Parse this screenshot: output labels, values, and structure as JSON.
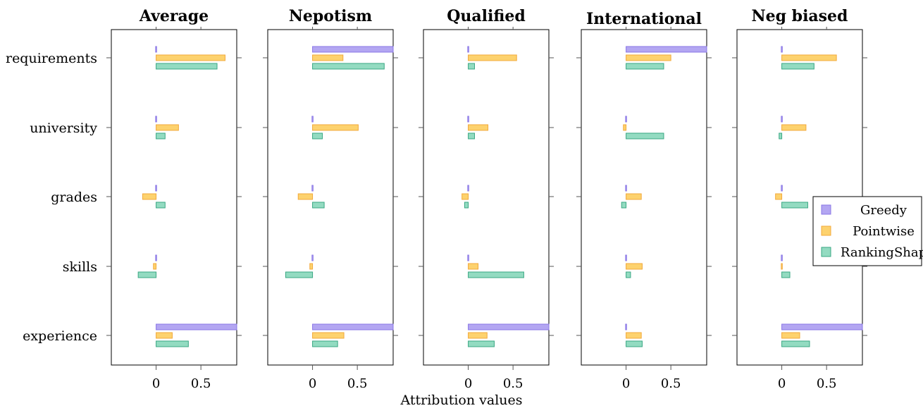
{
  "chart_data": {
    "type": "bar",
    "orientation": "horizontal",
    "xlabel": "Attribution values",
    "features": [
      "requirements",
      "university",
      "grades",
      "skills",
      "experience"
    ],
    "xticks": [
      0,
      0.5
    ],
    "xtick_labels": [
      "0",
      "0.5"
    ],
    "xlim": [
      -0.5,
      0.9
    ],
    "legend": {
      "placement": "right",
      "entries": [
        {
          "name": "Greedy",
          "color": "#b3a6f2",
          "border": "#8a77e6"
        },
        {
          "name": "Pointwise",
          "color": "#fdd26e",
          "border": "#f2a93b"
        },
        {
          "name": "RankingShap",
          "color": "#93dbc1",
          "border": "#3aa783"
        }
      ]
    },
    "panels": [
      {
        "title": "Average",
        "series": [
          {
            "name": "Greedy",
            "values": [
              0.0,
              0.0,
              0.0,
              0.0,
              0.9
            ]
          },
          {
            "name": "Pointwise",
            "values": [
              0.77,
              0.25,
              -0.15,
              -0.03,
              0.18
            ]
          },
          {
            "name": "RankingShap",
            "values": [
              0.68,
              0.1,
              0.1,
              -0.2,
              0.36
            ]
          }
        ]
      },
      {
        "title": "Nepotism",
        "series": [
          {
            "name": "Greedy",
            "values": [
              0.9,
              0.0,
              0.0,
              0.0,
              0.9
            ]
          },
          {
            "name": "Pointwise",
            "values": [
              0.34,
              0.51,
              -0.16,
              -0.03,
              0.35
            ]
          },
          {
            "name": "RankingShap",
            "values": [
              0.8,
              0.11,
              0.13,
              -0.3,
              0.28
            ]
          }
        ]
      },
      {
        "title": "Qualified",
        "series": [
          {
            "name": "Greedy",
            "values": [
              0.0,
              0.0,
              0.0,
              0.0,
              0.9
            ]
          },
          {
            "name": "Pointwise",
            "values": [
              0.54,
              0.22,
              -0.07,
              0.11,
              0.21
            ]
          },
          {
            "name": "RankingShap",
            "values": [
              0.07,
              0.07,
              -0.04,
              0.62,
              0.29
            ]
          }
        ]
      },
      {
        "title": "International",
        "series": [
          {
            "name": "Greedy",
            "values": [
              0.9,
              0.0,
              0.0,
              0.0,
              0.0
            ]
          },
          {
            "name": "Pointwise",
            "values": [
              0.5,
              -0.03,
              0.17,
              0.18,
              0.17
            ]
          },
          {
            "name": "RankingShap",
            "values": [
              0.42,
              0.42,
              -0.05,
              0.05,
              0.18
            ]
          }
        ]
      },
      {
        "title": "Neg biased",
        "series": [
          {
            "name": "Greedy",
            "values": [
              0.0,
              0.0,
              0.0,
              0.0,
              0.9
            ]
          },
          {
            "name": "Pointwise",
            "values": [
              0.61,
              0.27,
              -0.07,
              0.0,
              0.2
            ]
          },
          {
            "name": "RankingShap",
            "values": [
              0.36,
              -0.03,
              0.29,
              0.09,
              0.31
            ]
          }
        ]
      }
    ]
  }
}
